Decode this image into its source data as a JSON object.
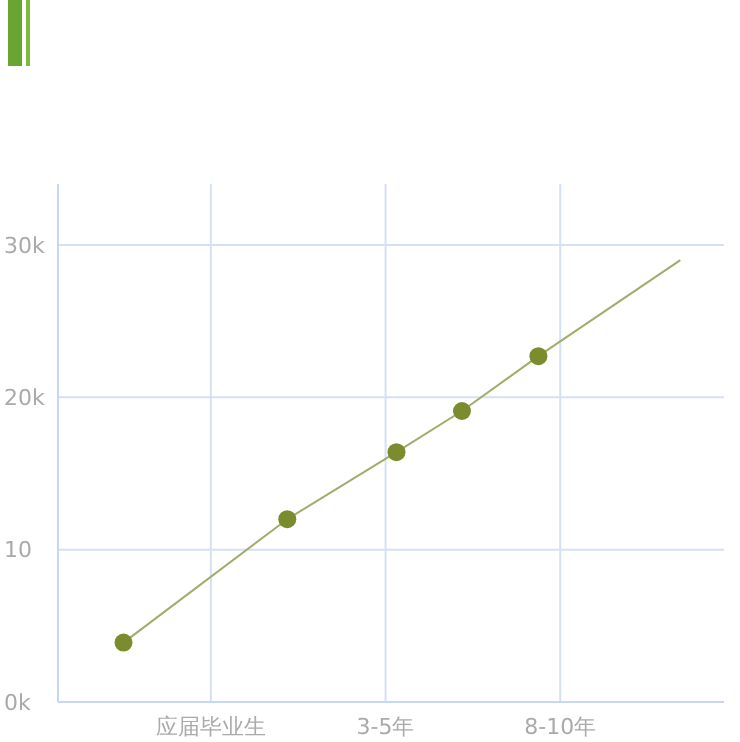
{
  "chart_data": {
    "type": "line",
    "categories": [
      null,
      null,
      null,
      null,
      null,
      null,
      null,
      null,
      null,
      null,
      null,
      null,
      null,
      null,
      "应届毕业生",
      null,
      null,
      null,
      null,
      null,
      null,
      null,
      null,
      null,
      null,
      null,
      null,
      null,
      null,
      null,
      "3-5年",
      null,
      null,
      null,
      null,
      null,
      null,
      null,
      null,
      null,
      null,
      null,
      null,
      null,
      null,
      null,
      "8-10年",
      null,
      null,
      null,
      null,
      null,
      null,
      null,
      null,
      null,
      null,
      null,
      null,
      null,
      null,
      null
    ],
    "ylim": [
      0,
      34
    ],
    "yticks": [
      {
        "value": 0,
        "label": "0k"
      },
      {
        "value": 10,
        "label": "10"
      },
      {
        "value": 20,
        "label": "20k"
      },
      {
        "value": 30,
        "label": "30k"
      }
    ],
    "grid": true,
    "series": [
      {
        "color": "#a3ab6a",
        "marker": "none",
        "values": [
          null,
          null,
          null,
          null,
          null,
          null,
          3.9,
          null,
          null,
          null,
          null,
          null,
          null,
          null,
          null,
          null,
          null,
          null,
          null,
          null,
          null,
          12,
          null,
          null,
          null,
          null,
          null,
          null,
          null,
          null,
          null,
          16.4,
          null,
          null,
          null,
          null,
          null,
          19.1,
          null,
          null,
          null,
          null,
          null,
          null,
          22.7,
          null,
          null,
          null,
          null,
          null,
          null,
          null,
          null,
          null,
          null,
          null,
          null,
          29,
          null,
          null,
          null,
          null
        ]
      },
      {
        "type": "scatter",
        "color": "#7a8c2e",
        "marker": "circle",
        "values": [
          null,
          null,
          null,
          null,
          null,
          null,
          3.9,
          null,
          null,
          null,
          null,
          null,
          null,
          null,
          null,
          null,
          null,
          null,
          null,
          null,
          null,
          12,
          null,
          null,
          null,
          null,
          null,
          null,
          null,
          null,
          null,
          16.4,
          null,
          null,
          null,
          null,
          null,
          19.1,
          null,
          null,
          null,
          null,
          null,
          null,
          22.7,
          null,
          null,
          null,
          null,
          null,
          null,
          null,
          null,
          null,
          null,
          null,
          null,
          null,
          null,
          null,
          null,
          null
        ]
      }
    ]
  }
}
